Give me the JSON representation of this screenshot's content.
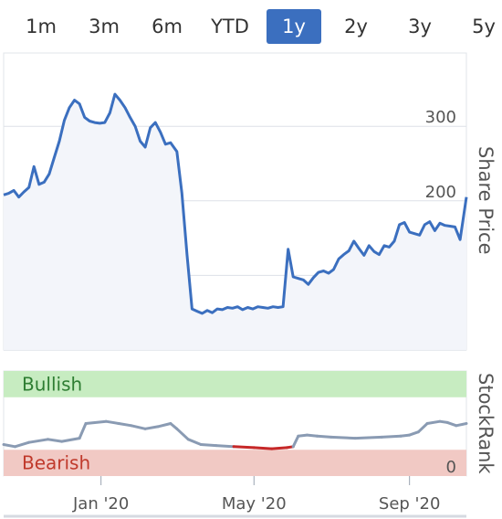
{
  "range_selector": {
    "options": [
      "1m",
      "3m",
      "6m",
      "YTD",
      "1y",
      "2y",
      "3y",
      "5y"
    ],
    "selected": "1y",
    "active_color": "#3b6fbf"
  },
  "chart_data": [
    {
      "type": "area",
      "ylabel": "Share Price",
      "yticks": [
        0,
        100,
        200,
        300
      ],
      "ylim": [
        0,
        400
      ],
      "xlim": [
        "2019-10-16",
        "2020-10-16"
      ],
      "grid": true,
      "line_color": "#3b6fbf",
      "fill_color": "#f3f5fa",
      "series": [
        {
          "x": [
            "2019-10-16",
            "2019-10-20",
            "2019-10-24",
            "2019-10-28",
            "2019-11-01",
            "2019-11-05",
            "2019-11-09",
            "2019-11-13",
            "2019-11-17",
            "2019-11-21",
            "2019-11-25",
            "2019-11-29",
            "2019-12-03",
            "2019-12-07",
            "2019-12-11",
            "2019-12-15",
            "2019-12-19",
            "2019-12-23",
            "2019-12-27",
            "2019-12-31",
            "2020-01-04",
            "2020-01-08",
            "2020-01-12",
            "2020-01-16",
            "2020-01-20",
            "2020-01-24",
            "2020-01-28",
            "2020-02-01",
            "2020-02-05",
            "2020-02-09",
            "2020-02-13",
            "2020-02-17",
            "2020-02-21",
            "2020-02-25",
            "2020-03-01",
            "2020-03-05",
            "2020-03-09",
            "2020-03-13",
            "2020-03-17",
            "2020-03-21",
            "2020-03-25",
            "2020-03-29",
            "2020-04-02",
            "2020-04-06",
            "2020-04-10",
            "2020-04-14",
            "2020-04-18",
            "2020-04-22",
            "2020-04-26",
            "2020-04-30",
            "2020-05-04",
            "2020-05-08",
            "2020-05-12",
            "2020-05-16",
            "2020-05-20",
            "2020-05-24",
            "2020-05-28",
            "2020-06-01",
            "2020-06-05",
            "2020-06-09",
            "2020-06-13",
            "2020-06-17",
            "2020-06-21",
            "2020-06-25",
            "2020-06-29",
            "2020-07-03",
            "2020-07-07",
            "2020-07-11",
            "2020-07-15",
            "2020-07-19",
            "2020-07-23",
            "2020-07-27",
            "2020-07-31",
            "2020-08-04",
            "2020-08-08",
            "2020-08-12",
            "2020-08-16",
            "2020-08-20",
            "2020-08-24",
            "2020-08-28",
            "2020-09-01",
            "2020-09-05",
            "2020-09-09",
            "2020-09-13",
            "2020-09-17",
            "2020-09-21",
            "2020-09-25",
            "2020-09-29",
            "2020-10-03",
            "2020-10-07",
            "2020-10-11",
            "2020-10-16"
          ],
          "y": [
            208,
            210,
            214,
            205,
            212,
            218,
            246,
            222,
            225,
            236,
            258,
            280,
            308,
            325,
            335,
            330,
            312,
            307,
            305,
            304,
            305,
            318,
            343,
            335,
            325,
            312,
            300,
            280,
            272,
            298,
            305,
            292,
            276,
            278,
            266,
            210,
            128,
            55,
            52,
            49,
            53,
            50,
            55,
            54,
            57,
            56,
            58,
            54,
            57,
            55,
            58,
            57,
            56,
            58,
            57,
            58,
            135,
            98,
            96,
            94,
            88,
            97,
            104,
            106,
            103,
            108,
            122,
            128,
            133,
            146,
            136,
            127,
            140,
            132,
            128,
            140,
            138,
            146,
            168,
            171,
            158,
            156,
            154,
            168,
            172,
            160,
            170,
            167,
            166,
            165,
            148,
            205
          ]
        }
      ]
    },
    {
      "type": "line",
      "ylabel": "StockRank",
      "yticks": [
        0
      ],
      "ylim": [
        0,
        100
      ],
      "bands": [
        {
          "label": "Bullish",
          "from": 75,
          "to": 100,
          "fill": "#c7ecc1",
          "text_color": "#2e7d32"
        },
        {
          "label": "Bearish",
          "from": 0,
          "to": 25,
          "fill": "#f1c9c4",
          "text_color": "#c0392b"
        }
      ],
      "line_color": "#8a9bb3",
      "bearish_line_color": "#c62828",
      "xticks": [
        "Jan '20",
        "May '20",
        "Sep '20"
      ],
      "series": [
        {
          "x": [
            "2019-10-16",
            "2019-10-25",
            "2019-11-05",
            "2019-11-20",
            "2019-12-01",
            "2019-12-15",
            "2019-12-20",
            "2020-01-05",
            "2020-01-15",
            "2020-01-25",
            "2020-02-05",
            "2020-02-15",
            "2020-02-25",
            "2020-03-01",
            "2020-03-10",
            "2020-03-20",
            "2020-04-01",
            "2020-04-15",
            "2020-05-01",
            "2020-05-15",
            "2020-05-27",
            "2020-06-01",
            "2020-06-05",
            "2020-06-12",
            "2020-06-20",
            "2020-07-01",
            "2020-07-20",
            "2020-08-10",
            "2020-08-25",
            "2020-09-01",
            "2020-09-08",
            "2020-09-15",
            "2020-09-25",
            "2020-10-01",
            "2020-10-08",
            "2020-10-16"
          ],
          "y": [
            30,
            28,
            32,
            35,
            33,
            36,
            50,
            52,
            50,
            48,
            45,
            47,
            50,
            45,
            35,
            30,
            29,
            28,
            27,
            26,
            27,
            28,
            38,
            39,
            38,
            37,
            36,
            37,
            38,
            39,
            42,
            50,
            52,
            51,
            48,
            50
          ]
        }
      ]
    }
  ]
}
